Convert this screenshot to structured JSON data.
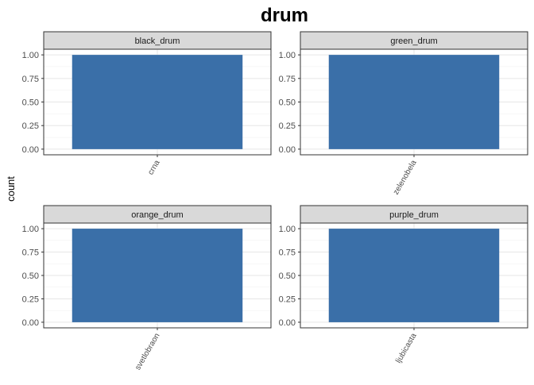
{
  "chart_data": {
    "type": "bar",
    "title": "drum",
    "xlabel": "",
    "ylabel": "count",
    "ylim": [
      0,
      1.2
    ],
    "yticks": [
      "0.00",
      "0.25",
      "0.50",
      "0.75",
      "1.00"
    ],
    "grid": true,
    "legend": "none",
    "bar_color": "#3A6FA8",
    "panels": [
      {
        "strip": "black_drum",
        "categories": [
          "crna"
        ],
        "values": [
          1
        ]
      },
      {
        "strip": "green_drum",
        "categories": [
          "zelenobela"
        ],
        "values": [
          1
        ]
      },
      {
        "strip": "orange_drum",
        "categories": [
          "svetlobraon"
        ],
        "values": [
          1
        ]
      },
      {
        "strip": "purple_drum",
        "categories": [
          "ljubicasta"
        ],
        "values": [
          1
        ]
      }
    ]
  }
}
